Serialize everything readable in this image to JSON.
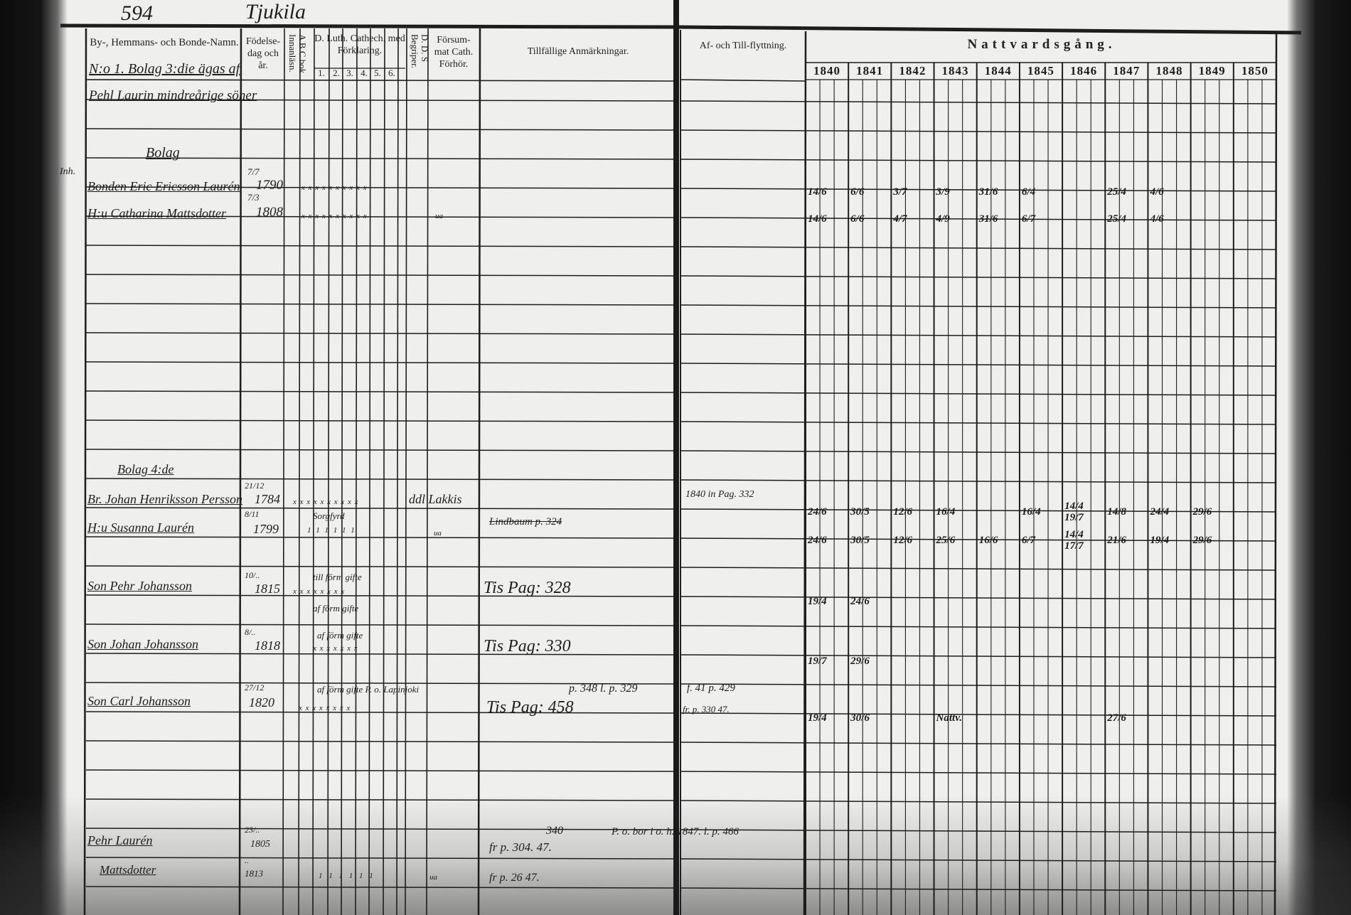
{
  "page": {
    "page_number": "594",
    "place_name": "Tjukila"
  },
  "headers": {
    "name_col": "By-, Hemmans- och Bonde-Namn.",
    "birth_col": "Födelse-dag och år.",
    "abc_col": "A B C bok Innanläsn.",
    "catech_col": "D. Luth. Cathech. med Förklaring.",
    "catech_sub": [
      "1.",
      "2.",
      "3.",
      "4.",
      "5.",
      "6."
    ],
    "dds_col": "D. D. S Begriper.",
    "forsummat_col": "Försum-mat Cath. Förhör.",
    "remarks_col": "Tillfällige Anmärkningar.",
    "moving_col": "Af- och Till-flyttning.",
    "communion_col": "Nattvardsgång.",
    "years": [
      "1840",
      "1841",
      "1842",
      "1843",
      "1844",
      "1845",
      "1846",
      "1847",
      "1848",
      "1849",
      "1850"
    ]
  },
  "entries": [
    {
      "label": "N:o 1. Bolag 3:die ägas af",
      "line2": "Pehl Laurin mindreårige söner"
    },
    {
      "label": "Bolag"
    },
    {
      "prefix": "Inh.",
      "name": "Bonden Eric Ericsson Laurén",
      "birth_day": "7/7",
      "birth_year": "1790",
      "catech": "x x x x x x x x x x",
      "communion": {
        "1840": "14/6",
        "1841": "6/6",
        "1842": "3/7",
        "1843": "3/9",
        "1844": "31/6",
        "1845": "6/4",
        "1847": "25/4",
        "1848": "4/6"
      }
    },
    {
      "name": "H:u Catharina Mattsdotter",
      "birth_day": "7/3",
      "birth_year": "1808",
      "catech": "x x x x x x x x x x",
      "forsummat": "ua",
      "communion": {
        "1840": "14/6",
        "1841": "6/6",
        "1842": "4/7",
        "1843": "4/9",
        "1844": "31/6",
        "1845": "6/7",
        "1847": "25/4",
        "1848": "4/6"
      }
    },
    {
      "label": "Bolag 4:de"
    },
    {
      "name": "Br. Johan Henriksson Persson",
      "birth_day": "21/12",
      "birth_year": "1784",
      "catech": "x x x x x x x x x x",
      "dds": "ddl Lakkis",
      "moving": "1840 in Pag. 332",
      "communion": {
        "1840": "24/6",
        "1841": "30/5",
        "1842": "12/6",
        "1843": "16/4",
        "1845": "16/4",
        "1846": "14/4 19/7",
        "1847": "14/8",
        "1848": "24/4",
        "1849": "29/6"
      }
    },
    {
      "name": "H:u Susanna Laurén",
      "birth_day": "8/11",
      "birth_year": "1799",
      "catech_note": "Sorgfyrd",
      "catech": "1 1 1 1 1 1",
      "forsummat": "ua",
      "remark": "Lindbaum p. 324",
      "communion": {
        "1840": "24/6",
        "1841": "30/5",
        "1842": "12/6",
        "1843": "25/6",
        "1844": "16/6",
        "1845": "6/7",
        "1846": "14/4 17/7",
        "1847": "21/6",
        "1848": "19/4",
        "1849": "29/6"
      }
    },
    {
      "name": "Son Pehr Johansson",
      "birth_day": "10/..",
      "birth_year": "1815",
      "catech_note": "till förm gifte",
      "catech": "x x x x x x x x",
      "catech_note2": "af förm gifte",
      "remark": "Tis Pag: 328",
      "communion": {
        "1840": "19/4",
        "1841": "24/6"
      }
    },
    {
      "name": "Son Johan Johansson",
      "birth_day": "8/..",
      "birth_year": "1818",
      "catech_note": "af förm gifte",
      "catech": "x x x x x x x",
      "remark": "Tis Pag: 330",
      "communion": {
        "1840": "19/7",
        "1841": "29/6"
      }
    },
    {
      "name": "Son Carl Johansson",
      "birth_day": "27/12",
      "birth_year": "1820",
      "catech_note": "af förm gifte P. o. Lapinjoki",
      "catech": "x x x x x x x x",
      "remark": "p. 348 l. p. 329",
      "remark2": "Tis Pag: 458",
      "moving": "f. 41 p. 429",
      "moving2": "fr. p. 330 47.",
      "communion": {
        "1840": "19/4",
        "1841": "30/6",
        "1843": "Nattv.",
        "1847": "27/6"
      }
    },
    {
      "name": "Pehr Laurén",
      "birth_day": "23/..",
      "birth_year": "1805",
      "remark_top": "340",
      "remark": "fr p. 304. 47.",
      "moving": "P. o. bor i o. h. 1847. l. p. 466"
    },
    {
      "name": "Mattsdotter",
      "birth_day": "..",
      "birth_year": "1813",
      "catech": "1 1 1 1 1 1",
      "forsummat": "ua",
      "remark": "fr p. 26 47."
    }
  ],
  "colors": {
    "paper": "#efefec",
    "ink": "#1c1c1c",
    "scan_border": "#0c0c0c"
  }
}
